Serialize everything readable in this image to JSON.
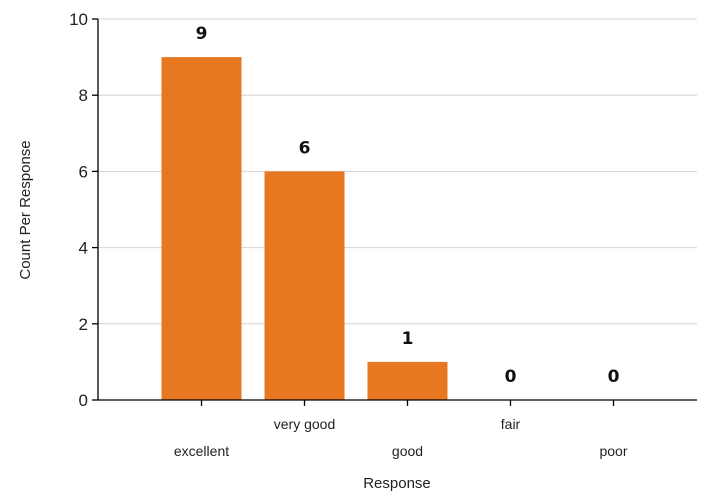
{
  "chart_data": {
    "type": "bar",
    "categories": [
      "excellent",
      "very good",
      "good",
      "fair",
      "poor"
    ],
    "values": [
      9,
      6,
      1,
      0,
      0
    ],
    "xlabel": "Response",
    "ylabel": "Count Per Response",
    "ylim": [
      0,
      10
    ],
    "yticks": [
      0,
      2,
      4,
      6,
      8,
      10
    ],
    "grid": true,
    "bar_color": "#E87722",
    "show_value_labels": true
  }
}
